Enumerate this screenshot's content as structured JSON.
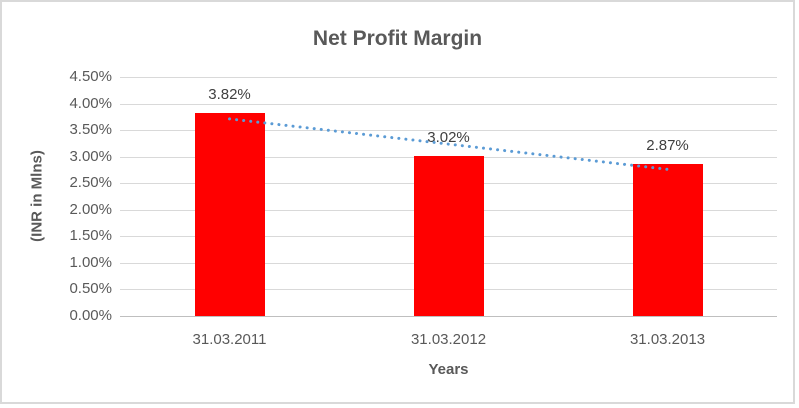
{
  "chart_data": {
    "type": "bar",
    "title": "Net Profit Margin",
    "xlabel": "Years",
    "ylabel": "(INR in Mlns)",
    "categories": [
      "31.03.2011",
      "31.03.2012",
      "31.03.2013"
    ],
    "values": [
      3.82,
      3.02,
      2.87
    ],
    "data_labels": [
      "3.82%",
      "3.02%",
      "2.87%"
    ],
    "ylim": [
      0,
      4.5
    ],
    "ytick_step": 0.5,
    "ytick_labels_top_to_bottom": [
      "4.50%",
      "4.00%",
      "3.50%",
      "3.00%",
      "2.50%",
      "2.00%",
      "1.50%",
      "1.00%",
      "0.50%",
      "0.00%"
    ],
    "grid": true,
    "legend": "none",
    "bar_color": "#FF0000",
    "trendline": {
      "type": "linear",
      "style": "dotted",
      "color": "#5B9BD5"
    },
    "colors": {
      "title_text": "#595959",
      "axis_text": "#595959",
      "data_label_text": "#404040",
      "gridline": "#D9D9D9",
      "axis_line": "#BFBFBF",
      "background": "#FFFFFF",
      "frame_border": "#D9D9D9"
    }
  }
}
